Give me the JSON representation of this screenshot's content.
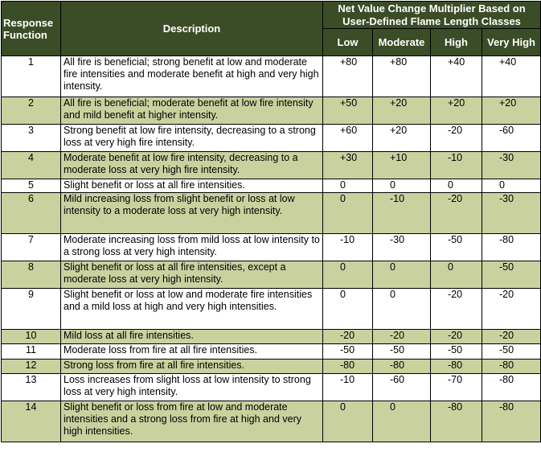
{
  "header": {
    "response_function": "Response Function",
    "description": "Description",
    "net_value": "Net Value Change Multiplier Based on User-Defined Flame Length Classes",
    "classes": [
      "Low",
      "Moderate",
      "High",
      "Very High"
    ]
  },
  "rows": [
    {
      "id": "1",
      "desc": "All fire is beneficial; strong benefit at low and moderate fire intensities and moderate benefit at high and very high intensity.",
      "low": "+80",
      "moderate": "+80",
      "high": "+40",
      "very_high": "+40"
    },
    {
      "id": "2",
      "desc": "All fire is beneficial; moderate benefit at low fire intensity and mild benefit at higher intensity.",
      "low": "+50",
      "moderate": "+20",
      "high": "+20",
      "very_high": "+20"
    },
    {
      "id": "3",
      "desc": "Strong benefit at low fire intensity, decreasing to a strong loss at very high fire intensity.",
      "low": "+60",
      "moderate": "+20",
      "high": "-20",
      "very_high": "-60"
    },
    {
      "id": "4",
      "desc": "Moderate benefit at low fire intensity, decreasing to a moderate loss at very high fire intensity.",
      "low": "+30",
      "moderate": "+10",
      "high": "-10",
      "very_high": "-30"
    },
    {
      "id": "5",
      "desc": "Slight benefit or loss at all fire intensities.",
      "low": "0",
      "moderate": "0",
      "high": "0",
      "very_high": "0"
    },
    {
      "id": "6",
      "desc": "Mild increasing loss from slight benefit or loss at low intensity to a moderate loss at very high intensity.",
      "low": "0",
      "moderate": "-10",
      "high": "-20",
      "very_high": "-30"
    },
    {
      "id": "7",
      "desc": "Moderate increasing loss from mild loss at low intensity to a strong loss at very high intensity.",
      "low": "-10",
      "moderate": "-30",
      "high": "-50",
      "very_high": "-80"
    },
    {
      "id": "8",
      "desc": "Slight benefit or loss at all fire intensities, except a moderate loss at very high intensity.",
      "low": "0",
      "moderate": "0",
      "high": "0",
      "very_high": "-50"
    },
    {
      "id": "9",
      "desc": "Slight benefit or loss at low and moderate fire intensities and a mild loss at high and very high intensities.",
      "low": "0",
      "moderate": "0",
      "high": "-20",
      "very_high": "-20"
    },
    {
      "id": "10",
      "desc": "Mild loss at all fire intensities.",
      "low": "-20",
      "moderate": "-20",
      "high": "-20",
      "very_high": "-20"
    },
    {
      "id": "11",
      "desc": "Moderate loss from fire at all fire intensities.",
      "low": "-50",
      "moderate": "-50",
      "high": "-50",
      "very_high": "-50"
    },
    {
      "id": "12",
      "desc": "Strong loss from fire at all fire intensities.",
      "low": "-80",
      "moderate": "-80",
      "high": "-80",
      "very_high": "-80"
    },
    {
      "id": "13",
      "desc": "Loss increases from slight loss at low intensity to strong loss at very high intensity.",
      "low": "-10",
      "moderate": "-60",
      "high": "-70",
      "very_high": "-80"
    },
    {
      "id": "14",
      "desc": "Slight benefit or loss from fire at low and moderate intensities and a strong loss from fire at high and very high intensities.",
      "low": "0",
      "moderate": "0",
      "high": "-80",
      "very_high": "-80"
    }
  ],
  "colors": {
    "header_bg": "#3b4d27",
    "header_text": "#ffffff",
    "shaded_row": "#c9d29f",
    "plain_row": "#ffffff",
    "border": "#000000"
  }
}
